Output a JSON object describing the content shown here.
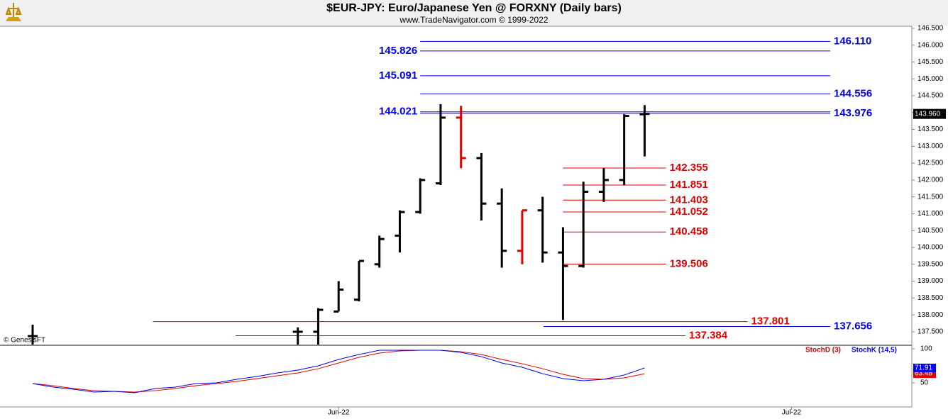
{
  "chart_data": [
    {
      "type": "ohlc",
      "title": "$EUR-JPY:  Euro/Japanese Yen @ FORXNY  (Daily bars)",
      "subtitle": "www.TradeNavigator.com © 1999-2022",
      "annotation": "© GenesisFT",
      "x": [
        -13,
        0,
        1,
        2,
        3,
        4,
        5,
        6,
        7,
        8,
        9,
        10,
        11,
        12,
        13,
        14,
        15,
        16,
        17
      ],
      "open": [
        137.37,
        137.5,
        137.5,
        138.1,
        138.45,
        139.5,
        140.35,
        141.05,
        141.9,
        143.85,
        142.65,
        141.3,
        139.9,
        141.1,
        139.85,
        139.45,
        141.65,
        142.0,
        143.95
      ],
      "high": [
        137.71,
        137.63,
        138.2,
        139.0,
        139.6,
        140.35,
        141.1,
        142.05,
        144.25,
        144.2,
        142.8,
        141.75,
        141.1,
        141.5,
        140.6,
        141.95,
        142.35,
        143.95,
        144.22
      ],
      "low": [
        137.12,
        137.12,
        137.12,
        138.1,
        138.4,
        139.4,
        139.85,
        141.0,
        141.85,
        142.35,
        140.8,
        139.4,
        139.5,
        139.55,
        137.85,
        139.4,
        141.35,
        141.85,
        142.7
      ],
      "close": [
        137.37,
        137.5,
        138.15,
        138.75,
        139.6,
        140.25,
        141.05,
        142.0,
        143.85,
        142.65,
        141.3,
        139.9,
        141.1,
        139.85,
        139.45,
        141.65,
        142.0,
        143.9,
        143.96
      ],
      "colors": [
        "#000000",
        "#000000",
        "#000000",
        "#000000",
        "#000000",
        "#000000",
        "#000000",
        "#000000",
        "#000000",
        "#e00000",
        "#000000",
        "#000000",
        "#e00000",
        "#000000",
        "#000000",
        "#000000",
        "#000000",
        "#000000",
        "#000000"
      ],
      "xlim": [
        -14.6,
        30.1
      ],
      "ylim": [
        137.12,
        146.56
      ],
      "yticks": [
        {
          "value": 137.5,
          "label": "137.500"
        },
        {
          "value": 138,
          "label": "138.000"
        },
        {
          "value": 138.5,
          "label": "138.500"
        },
        {
          "value": 139,
          "label": "139.000"
        },
        {
          "value": 139.5,
          "label": "139.500"
        },
        {
          "value": 140,
          "label": "140.000"
        },
        {
          "value": 140.5,
          "label": "140.500"
        },
        {
          "value": 141,
          "label": "141.000"
        },
        {
          "value": 141.5,
          "label": "141.500"
        },
        {
          "value": 142,
          "label": "142.000"
        },
        {
          "value": 142.5,
          "label": "142.500"
        },
        {
          "value": 143,
          "label": "143.000"
        },
        {
          "value": 143.5,
          "label": "143.500"
        },
        {
          "value": 144,
          "label": "144.000"
        },
        {
          "value": 144.5,
          "label": "144.500"
        },
        {
          "value": 145,
          "label": "145.000"
        },
        {
          "value": 145.5,
          "label": "145.500"
        },
        {
          "value": 146,
          "label": "146.000"
        },
        {
          "value": 146.5,
          "label": "146.500"
        }
      ],
      "last_price": {
        "value": 143.96,
        "label": "143.960"
      },
      "levels": [
        {
          "value": 146.11,
          "label": "146.110",
          "color": "#0000ee",
          "x_start": 6.0,
          "x_end": 26.1,
          "label_side": "right"
        },
        {
          "value": 145.826,
          "label": "145.826",
          "color": "#0000ee",
          "x_start": 6.0,
          "x_end": 26.1,
          "label_side": "left"
        },
        {
          "value": 145.091,
          "label": "145.091",
          "color": "#0000ee",
          "x_start": 6.0,
          "x_end": 26.1,
          "label_side": "left"
        },
        {
          "value": 144.556,
          "label": "144.556",
          "color": "#0000ee",
          "x_start": 6.0,
          "x_end": 26.1,
          "label_side": "right"
        },
        {
          "value": 144.021,
          "label": "144.021",
          "color": "#0000ee",
          "x_start": 6.0,
          "x_end": 26.1,
          "label_side": "left"
        },
        {
          "value": 143.976,
          "label": "143.976",
          "color": "#0000ee",
          "x_start": 6.0,
          "x_end": 26.1,
          "label_side": "right"
        },
        {
          "value": 142.355,
          "label": "142.355",
          "color": "#e00000",
          "x_start": 13.0,
          "x_end": 18.05,
          "label_side": "right"
        },
        {
          "value": 141.851,
          "label": "141.851",
          "color": "#e00000",
          "x_start": 13.0,
          "x_end": 18.05,
          "label_side": "right"
        },
        {
          "value": 141.403,
          "label": "141.403",
          "color": "#e00000",
          "x_start": 13.0,
          "x_end": 18.05,
          "label_side": "right"
        },
        {
          "value": 141.052,
          "label": "141.052",
          "color": "#e00000",
          "x_start": 13.0,
          "x_end": 18.05,
          "label_side": "right"
        },
        {
          "value": 140.458,
          "label": "140.458",
          "color": "#e00000",
          "x_start": 13.0,
          "x_end": 18.05,
          "label_side": "right"
        },
        {
          "value": 139.506,
          "label": "139.506",
          "color": "#e00000",
          "x_start": 13.0,
          "x_end": 18.05,
          "label_side": "right"
        },
        {
          "value": 137.801,
          "label": "137.801",
          "color": "#e00000",
          "x_start": -7.1,
          "x_end": 22.05,
          "label_side": "right"
        },
        {
          "value": 137.656,
          "label": "137.656",
          "color": "#0000ee",
          "x_start": 12.05,
          "x_end": 26.1,
          "label_side": "right"
        },
        {
          "value": 137.384,
          "label": "137.384",
          "color": "#e00000",
          "x_start": -3.05,
          "x_end": 19.0,
          "label_side": "right"
        }
      ]
    },
    {
      "type": "line",
      "x": [
        -13,
        -12,
        -11,
        -10,
        -9,
        -8,
        -7,
        -6,
        -5,
        -4,
        -3,
        -2,
        -1,
        0,
        1,
        2,
        3,
        4,
        5,
        6,
        7,
        8,
        9,
        10,
        11,
        12,
        13,
        14,
        15,
        16,
        17
      ],
      "series": [
        {
          "name": "StochD (3)",
          "color": "#e00000",
          "values": [
            49.0,
            45.8,
            41.7,
            38.5,
            37.5,
            36.5,
            38.5,
            41.7,
            45.8,
            49.0,
            52.1,
            56.3,
            60.4,
            64.6,
            70.8,
            79.2,
            87.5,
            93.8,
            96.9,
            97.9,
            97.9,
            95.8,
            91.7,
            84.4,
            78.1,
            70.8,
            62.5,
            56.3,
            55.2,
            57.3,
            63.48
          ]
        },
        {
          "name": "StochK (14,5)",
          "color": "#0000ee",
          "values": [
            49.0,
            43.8,
            40.6,
            36.5,
            37.5,
            35.4,
            41.7,
            43.8,
            49.0,
            50.0,
            55.2,
            59.4,
            64.6,
            68.8,
            75.0,
            84.4,
            91.7,
            97.9,
            97.9,
            97.9,
            97.9,
            94.8,
            88.5,
            79.2,
            72.9,
            63.5,
            56.3,
            53.1,
            55.2,
            61.5,
            71.91
          ]
        }
      ],
      "xlim": [
        -14.6,
        30.1
      ],
      "ylim": [
        14.6,
        104.2
      ],
      "yticks": [
        50,
        100
      ],
      "xticks": [
        {
          "value": 2.0,
          "label": "Jun-22"
        },
        {
          "value": 24.2,
          "label": "Jul-22"
        }
      ]
    }
  ]
}
